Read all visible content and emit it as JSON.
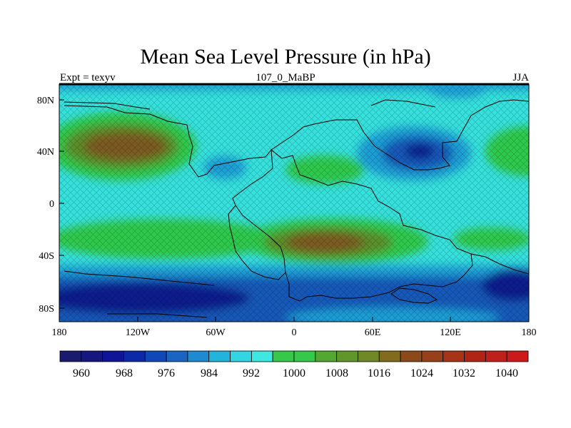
{
  "title": "Mean Sea Level Pressure (in hPa)",
  "subtitle_left": "Expt = texyv",
  "subtitle_center": "107_0_MaBP",
  "subtitle_right": "JJA",
  "x_ticks": [
    "180",
    "120W",
    "60W",
    "0",
    "60E",
    "120E",
    "180"
  ],
  "y_ticks": [
    "80N",
    "40N",
    "0",
    "40S",
    "80S"
  ],
  "colorbar": {
    "labels": [
      "960",
      "968",
      "976",
      "984",
      "992",
      "1000",
      "1008",
      "1016",
      "1024",
      "1032",
      "1040"
    ],
    "colors": [
      "#1a1a6e",
      "#16167f",
      "#101496",
      "#0c2aa8",
      "#1048b8",
      "#1a64c4",
      "#1e8ad0",
      "#22b4dc",
      "#32d6e2",
      "#3ee8e0",
      "#36c848",
      "#36c84a",
      "#52a830",
      "#60962a",
      "#708826",
      "#806c1c",
      "#8c4a1a",
      "#98401a",
      "#a83418",
      "#b02416",
      "#c0201a",
      "#cc1a1a"
    ]
  },
  "map_colors": {
    "ocean_mid": "#36e0dc",
    "light_blue": "#1a9ed4",
    "mid_blue": "#1458b8",
    "deep_blue": "#0e1c8c",
    "green": "#2ec84c",
    "olive": "#5a8e2a",
    "brown": "#7a5a20"
  }
}
